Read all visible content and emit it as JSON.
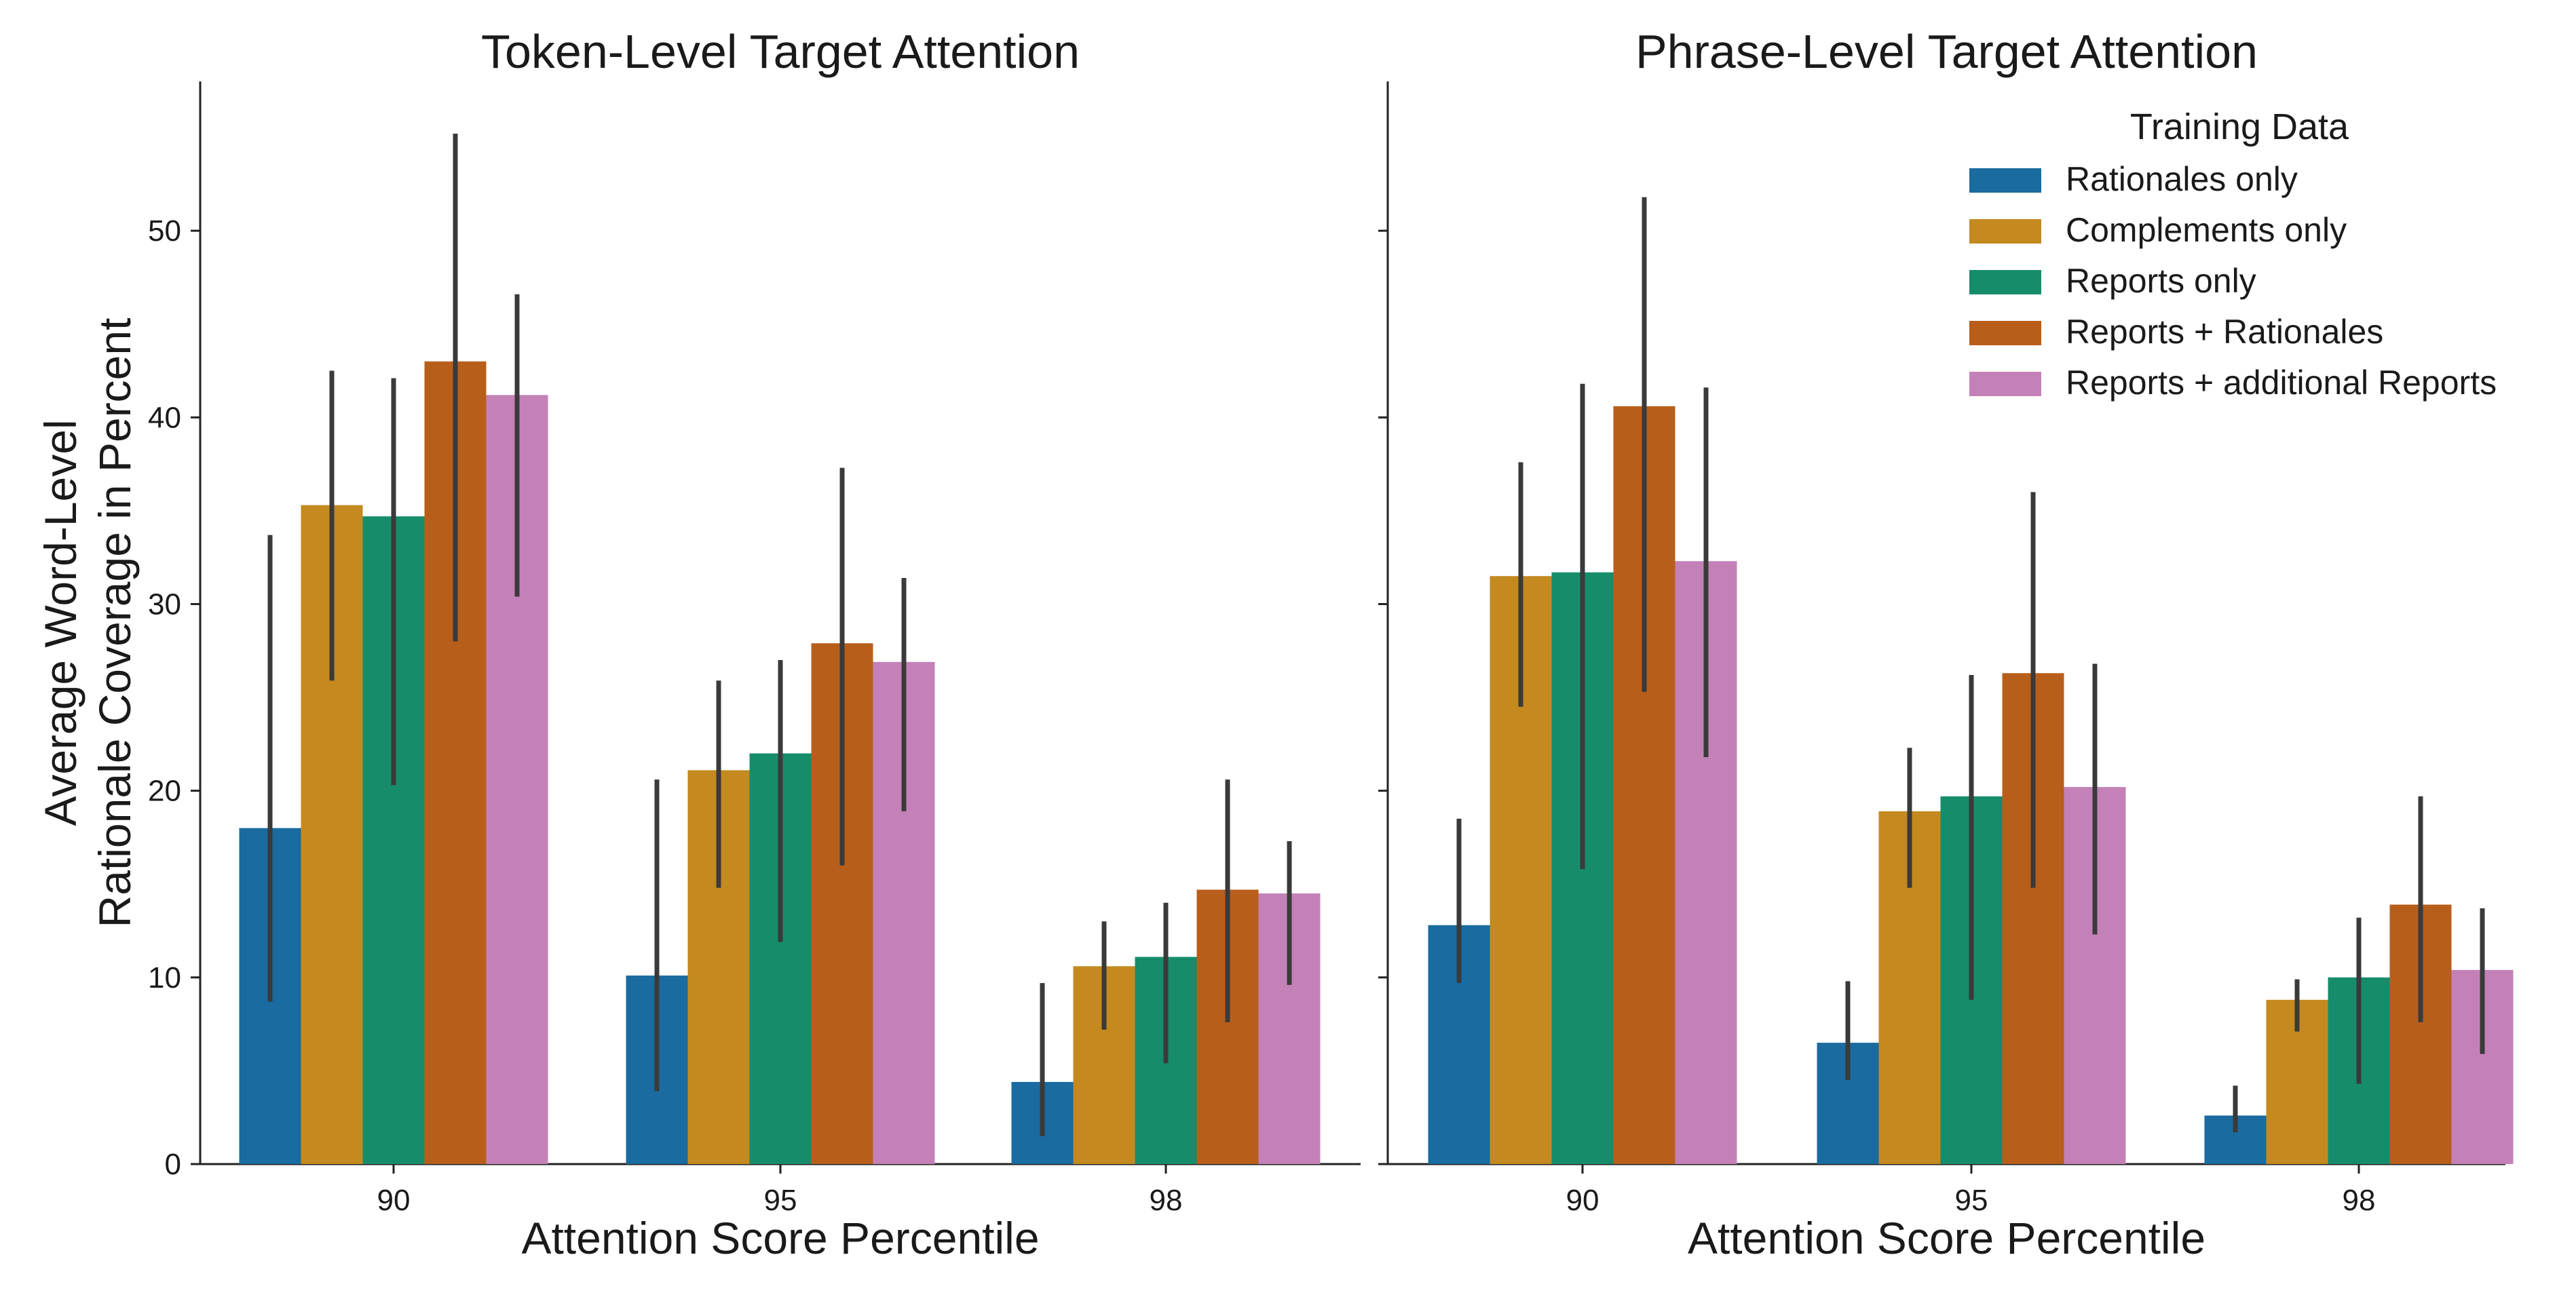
{
  "chart_data": [
    {
      "type": "bar",
      "title": "Token-Level Target Attention",
      "xlabel": "Attention Score Percentile",
      "ylabel": "Average Word-Level\nRationale Coverage in Percent",
      "categories": [
        "90",
        "95",
        "98"
      ],
      "ylim": [
        0,
        58
      ],
      "yticks": [
        0,
        10,
        20,
        30,
        40,
        50
      ],
      "grid": false,
      "series": [
        {
          "name": "Rationales only",
          "values": [
            18.0,
            10.1,
            4.4
          ],
          "ci": [
            [
              8.7,
              33.7
            ],
            [
              3.9,
              20.6
            ],
            [
              1.5,
              9.7
            ]
          ]
        },
        {
          "name": "Complements only",
          "values": [
            35.3,
            21.1,
            10.6
          ],
          "ci": [
            [
              25.9,
              42.5
            ],
            [
              14.8,
              25.9
            ],
            [
              7.2,
              13.0
            ]
          ]
        },
        {
          "name": "Reports only",
          "values": [
            34.7,
            22.0,
            11.1
          ],
          "ci": [
            [
              20.3,
              42.1
            ],
            [
              11.9,
              27.0
            ],
            [
              5.4,
              14.0
            ]
          ]
        },
        {
          "name": "Reports + Rationales",
          "values": [
            43.0,
            27.9,
            14.7
          ],
          "ci": [
            [
              28.0,
              55.2
            ],
            [
              16.0,
              37.3
            ],
            [
              7.6,
              20.6
            ]
          ]
        },
        {
          "name": "Reports + additional Reports",
          "values": [
            41.2,
            26.9,
            14.5
          ],
          "ci": [
            [
              30.4,
              46.6
            ],
            [
              18.9,
              31.4
            ],
            [
              9.6,
              17.3
            ]
          ]
        }
      ]
    },
    {
      "type": "bar",
      "title": "Phrase-Level Target Attention",
      "xlabel": "Attention Score Percentile",
      "ylabel": "",
      "categories": [
        "90",
        "95",
        "98"
      ],
      "ylim": [
        0,
        58
      ],
      "yticks": [
        0,
        10,
        20,
        30,
        40,
        50
      ],
      "grid": false,
      "series": [
        {
          "name": "Rationales only",
          "values": [
            12.8,
            6.5,
            2.6
          ],
          "ci": [
            [
              9.7,
              18.5
            ],
            [
              4.5,
              9.8
            ],
            [
              1.7,
              4.2
            ]
          ]
        },
        {
          "name": "Complements only",
          "values": [
            31.5,
            18.9,
            8.8
          ],
          "ci": [
            [
              24.5,
              37.6
            ],
            [
              14.8,
              22.3
            ],
            [
              7.1,
              9.9
            ]
          ]
        },
        {
          "name": "Reports only",
          "values": [
            31.7,
            19.7,
            10.0
          ],
          "ci": [
            [
              15.8,
              41.8
            ],
            [
              8.8,
              26.2
            ],
            [
              4.3,
              13.2
            ]
          ]
        },
        {
          "name": "Reports + Rationales",
          "values": [
            40.6,
            26.3,
            13.9
          ],
          "ci": [
            [
              25.3,
              51.8
            ],
            [
              14.8,
              36.0
            ],
            [
              7.6,
              19.7
            ]
          ]
        },
        {
          "name": "Reports + additional Reports",
          "values": [
            32.3,
            20.2,
            10.4
          ],
          "ci": [
            [
              21.8,
              41.6
            ],
            [
              12.3,
              26.8
            ],
            [
              5.9,
              13.7
            ]
          ]
        }
      ]
    }
  ],
  "legend": {
    "title": "Training Data",
    "placement": "top-right of right panel",
    "entries": [
      "Rationales only",
      "Complements only",
      "Reports only",
      "Reports + Rationales",
      "Reports + additional Reports"
    ]
  },
  "colors": [
    "#1a6b9f",
    "#c4891f",
    "#178c6b",
    "#b85e1b",
    "#c481b8"
  ],
  "errorbar_color": "#3a3a3a"
}
